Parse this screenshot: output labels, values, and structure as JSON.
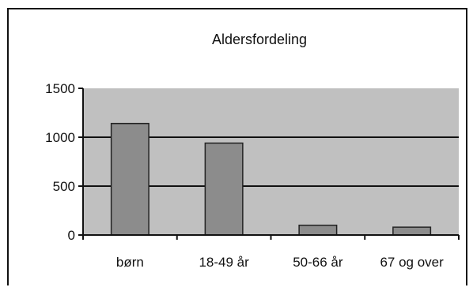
{
  "chart_data": {
    "type": "bar",
    "title": "Aldersfordeling",
    "categories": [
      "børn",
      "18-49 år",
      "50-66 år",
      "67 og over"
    ],
    "values": [
      1140,
      940,
      100,
      80
    ],
    "ylim": [
      0,
      1500
    ],
    "yticks": [
      0,
      500,
      1000,
      1500
    ],
    "xlabel": "",
    "ylabel": "",
    "grid": true,
    "colors": {
      "plot_background": "#c0c0c0",
      "bar_fill": "#8c8c8c",
      "bar_stroke": "#222222",
      "gridline": "#111111"
    }
  }
}
